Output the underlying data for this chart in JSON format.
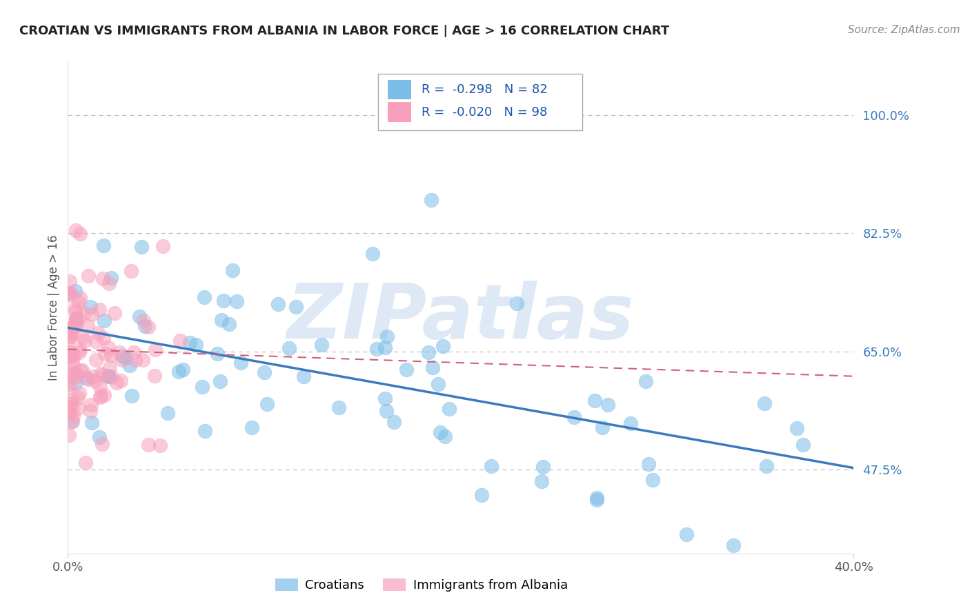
{
  "title": "CROATIAN VS IMMIGRANTS FROM ALBANIA IN LABOR FORCE | AGE > 16 CORRELATION CHART",
  "source": "Source: ZipAtlas.com",
  "ylabel": "In Labor Force | Age > 16",
  "xlim": [
    0.0,
    0.4
  ],
  "ylim": [
    0.35,
    1.08
  ],
  "yticks": [
    0.475,
    0.65,
    0.825,
    1.0
  ],
  "ytick_labels": [
    "47.5%",
    "65.0%",
    "82.5%",
    "100.0%"
  ],
  "xticks": [
    0.0,
    0.4
  ],
  "xtick_labels": [
    "0.0%",
    "40.0%"
  ],
  "blue_color": "#7bbde8",
  "pink_color": "#f8a0bb",
  "trend_blue": "#3a7abf",
  "trend_pink": "#d06080",
  "watermark": "ZIPatlas",
  "watermark_color": "#c5d8ee",
  "background": "#ffffff",
  "grid_color": "#c0c0c0",
  "R1": -0.298,
  "N1": 82,
  "R2": -0.02,
  "N2": 98,
  "seed": 7,
  "blue_intercept": 0.685,
  "blue_slope": -0.52,
  "pink_intercept": 0.653,
  "pink_slope": -0.1,
  "title_fontsize": 13,
  "source_fontsize": 11,
  "tick_fontsize": 13,
  "legend_fontsize": 13
}
